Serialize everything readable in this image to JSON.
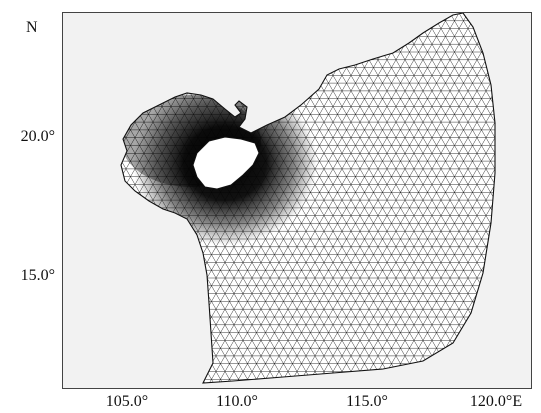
{
  "map": {
    "north_label": "N",
    "latitude_ticks": [
      {
        "label": "20.0°",
        "value": 20.0
      },
      {
        "label": "15.0°",
        "value": 15.0
      }
    ],
    "longitude_ticks": [
      {
        "label": "105.0°",
        "value": 105.0
      },
      {
        "label": "110.0°",
        "value": 110.0
      },
      {
        "label": "115.0°",
        "value": 115.0
      },
      {
        "label": "120.0°E",
        "value": 120.0
      }
    ],
    "lon_range": [
      103.0,
      121.2
    ],
    "lat_range": [
      10.6,
      24.5
    ],
    "background_color": "#f2f2f2",
    "mesh_color": "#1a1a1a",
    "island_label": ""
  }
}
